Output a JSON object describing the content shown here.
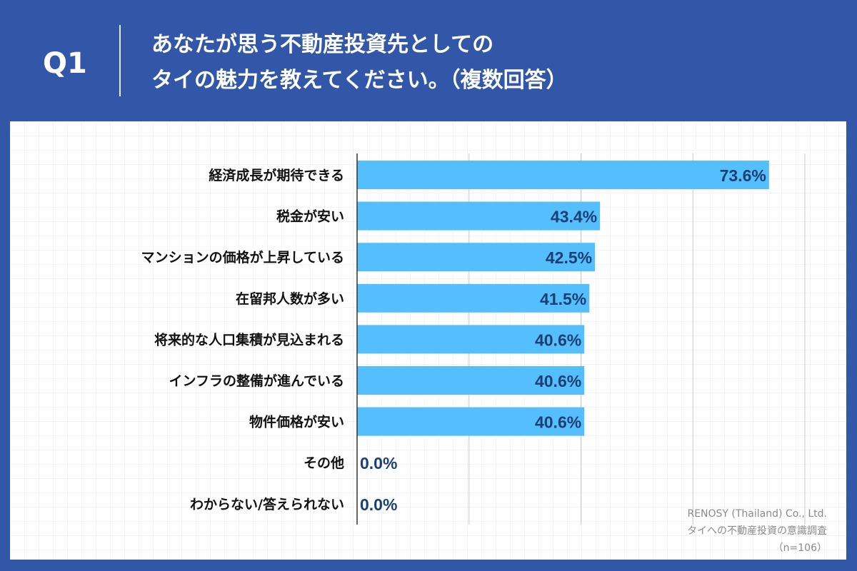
{
  "header": {
    "question_no": "Q1",
    "title_line1": "あなたが思う不動産投資先としての",
    "title_line2": "タイの魅力を教えてください。（複数回答）"
  },
  "colors": {
    "background": "#3257a8",
    "bar": "#55bffd",
    "value_text": "#1b3f73",
    "gridline": "#c8c8c8"
  },
  "chart_data": {
    "type": "bar",
    "orientation": "horizontal",
    "categories": [
      "経済成長が期待できる",
      "税金が安い",
      "マンションの価格が上昇している",
      "在留邦人数が多い",
      "将来的な人口集積が見込まれる",
      "インフラの整備が進んでいる",
      "物件価格が安い",
      "その他",
      "わからない/答えられない"
    ],
    "values": [
      73.6,
      43.4,
      42.5,
      41.5,
      40.6,
      40.6,
      40.6,
      0.0,
      0.0
    ],
    "data_labels": [
      "73.6%",
      "43.4%",
      "42.5%",
      "41.5%",
      "40.6%",
      "40.6%",
      "40.6%",
      "0.0%",
      "0.0%"
    ],
    "xlim": [
      0,
      80
    ],
    "grid": true,
    "grid_step": 20
  },
  "footer": {
    "company": "RENOSY (Thailand) Co., Ltd.",
    "survey": "タイへの不動産投資の意識調査",
    "sample": "（n=106）"
  }
}
